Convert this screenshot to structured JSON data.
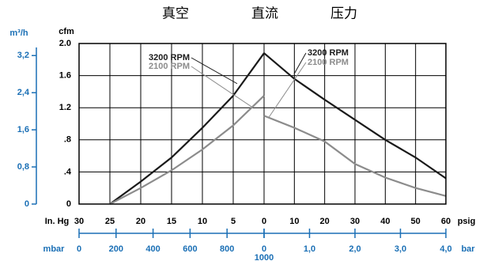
{
  "chart_data": {
    "type": "line",
    "section_labels": [
      "真空",
      "直流",
      "压力"
    ],
    "y_label": "cfm",
    "ylim": [
      0,
      2
    ],
    "yticks": [
      {
        "value": 2,
        "label": "2.0"
      },
      1.6,
      1.2,
      {
        "value": 0.8,
        "label": ".8"
      },
      {
        "value": 0.4,
        "label": ".4"
      },
      0
    ],
    "y2_label": "m³/h",
    "y2lim": [
      0,
      3.46
    ],
    "y2ticks": [
      {
        "value": 3.2,
        "label": "3,2"
      },
      {
        "value": 2.4,
        "label": "2,4"
      },
      {
        "value": 1.6,
        "label": "1,6"
      },
      {
        "value": 0.8,
        "label": "0,8"
      },
      0
    ],
    "grid": true,
    "panels": [
      {
        "x_label": "In. Hg",
        "xlim": [
          30,
          0
        ],
        "xticks": [
          30,
          25,
          20,
          15,
          10,
          5,
          0
        ],
        "series": [
          {
            "name": "3200 RPM",
            "color": "#1a1a1a",
            "x": [
              25,
              20,
              15,
              10,
              5,
              0
            ],
            "values": [
              0,
              0.28,
              0.58,
              0.95,
              1.35,
              1.88
            ]
          },
          {
            "name": "2100 RPM",
            "color": "#8c8c8c",
            "x": [
              25,
              20,
              15,
              10,
              5,
              0
            ],
            "values": [
              0,
              0.2,
              0.42,
              0.68,
              0.98,
              1.35
            ]
          }
        ]
      },
      {
        "x_label": "psig",
        "xlim": [
          0,
          60
        ],
        "xticks": [
          10,
          20,
          30,
          40,
          50,
          60
        ],
        "series": [
          {
            "name": "3200 RPM",
            "color": "#1a1a1a",
            "x": [
              0,
              10,
              20,
              30,
              40,
              50,
              60
            ],
            "values": [
              1.88,
              1.56,
              1.3,
              1.05,
              0.8,
              0.58,
              0.32
            ]
          },
          {
            "name": "2100 RPM",
            "color": "#8c8c8c",
            "x": [
              0,
              10,
              20,
              30,
              40,
              50,
              60
            ],
            "values": [
              1.1,
              0.95,
              0.78,
              0.5,
              0.33,
              0.2,
              0.1
            ]
          }
        ]
      }
    ],
    "secondary_x": [
      {
        "label": "mbar",
        "xlim": [
          0,
          1000
        ],
        "xticks": [
          0,
          200,
          400,
          600,
          800,
          1000
        ]
      },
      {
        "label": "bar",
        "xlim": [
          0,
          4
        ],
        "xticks": [
          0,
          {
            "value": 1,
            "label": "1,0"
          },
          {
            "value": 2,
            "label": "2,0"
          },
          {
            "value": 3,
            "label": "3,0"
          },
          {
            "value": 4,
            "label": "4,0"
          }
        ]
      }
    ]
  }
}
